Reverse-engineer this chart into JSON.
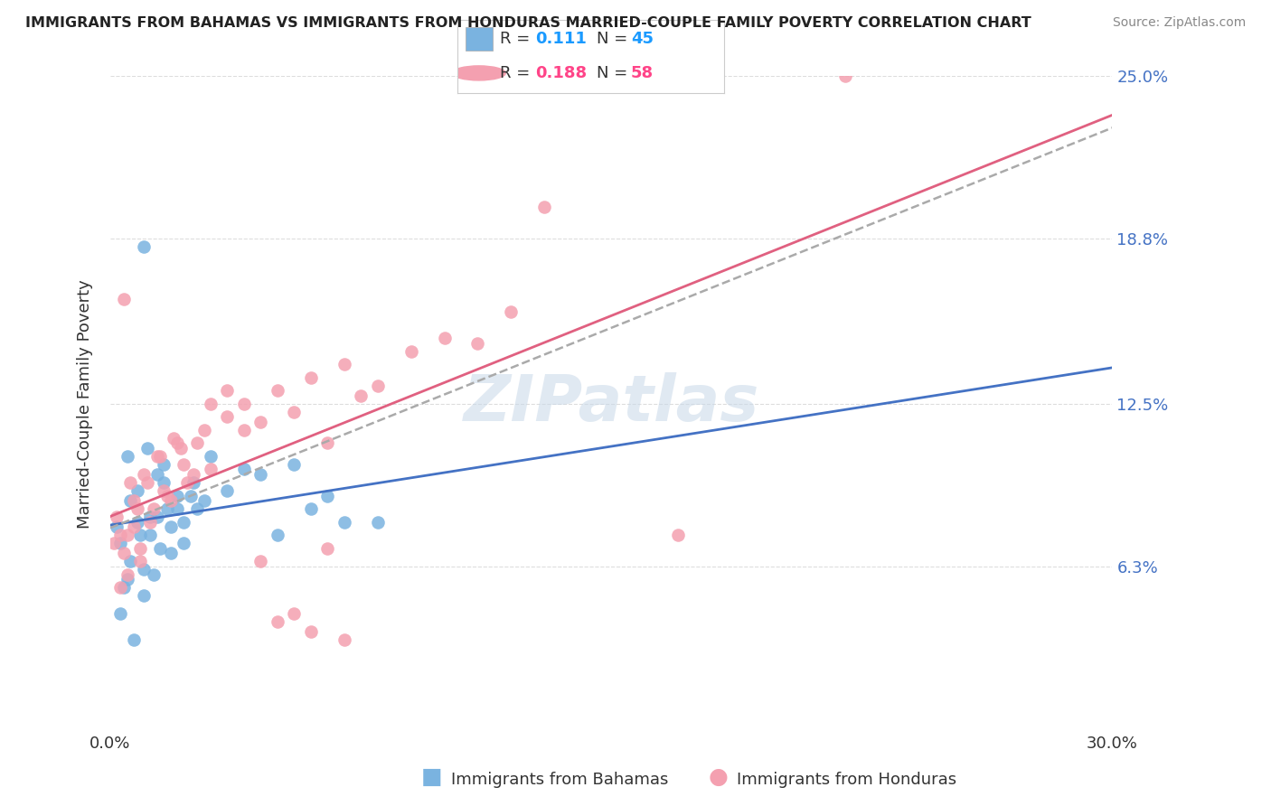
{
  "title": "IMMIGRANTS FROM BAHAMAS VS IMMIGRANTS FROM HONDURAS MARRIED-COUPLE FAMILY POVERTY CORRELATION CHART",
  "source": "Source: ZipAtlas.com",
  "ylabel": "Married-Couple Family Poverty",
  "x_min": 0.0,
  "x_max": 30.0,
  "y_min": 0.0,
  "y_max": 25.0,
  "bahamas_color": "#7ab3e0",
  "honduras_color": "#f4a0b0",
  "bahamas_R": "0.111",
  "bahamas_N": "45",
  "honduras_R": "0.188",
  "honduras_N": "58",
  "watermark": "ZIPatlas",
  "bahamas_line_color": "#4472C4",
  "honduras_line_color": "#e06080",
  "dash_color": "#aaaaaa",
  "bahamas_scatter": [
    [
      0.3,
      7.2
    ],
    [
      0.5,
      10.5
    ],
    [
      0.6,
      8.8
    ],
    [
      0.7,
      3.5
    ],
    [
      0.8,
      9.2
    ],
    [
      0.9,
      7.5
    ],
    [
      1.0,
      5.2
    ],
    [
      1.1,
      10.8
    ],
    [
      1.2,
      8.2
    ],
    [
      1.3,
      6.0
    ],
    [
      1.4,
      9.8
    ],
    [
      1.5,
      7.0
    ],
    [
      1.6,
      10.2
    ],
    [
      1.7,
      8.5
    ],
    [
      1.8,
      6.8
    ],
    [
      2.0,
      9.0
    ],
    [
      2.2,
      8.0
    ],
    [
      2.5,
      9.5
    ],
    [
      2.8,
      8.8
    ],
    [
      3.0,
      10.5
    ],
    [
      3.5,
      9.2
    ],
    [
      4.0,
      10.0
    ],
    [
      4.5,
      9.8
    ],
    [
      5.0,
      7.5
    ],
    [
      5.5,
      10.2
    ],
    [
      6.0,
      8.5
    ],
    [
      6.5,
      9.0
    ],
    [
      7.0,
      8.0
    ],
    [
      0.2,
      7.8
    ],
    [
      0.4,
      5.5
    ],
    [
      0.6,
      6.5
    ],
    [
      0.8,
      8.0
    ],
    [
      1.0,
      6.2
    ],
    [
      1.2,
      7.5
    ],
    [
      1.4,
      8.2
    ],
    [
      1.6,
      9.5
    ],
    [
      1.8,
      7.8
    ],
    [
      2.0,
      8.5
    ],
    [
      2.2,
      7.2
    ],
    [
      2.4,
      9.0
    ],
    [
      0.3,
      4.5
    ],
    [
      0.5,
      5.8
    ],
    [
      2.6,
      8.5
    ],
    [
      8.0,
      8.0
    ],
    [
      1.0,
      18.5
    ]
  ],
  "honduras_scatter": [
    [
      0.2,
      8.2
    ],
    [
      0.3,
      5.5
    ],
    [
      0.4,
      6.8
    ],
    [
      0.5,
      7.5
    ],
    [
      0.6,
      9.5
    ],
    [
      0.7,
      7.8
    ],
    [
      0.8,
      8.5
    ],
    [
      0.9,
      6.5
    ],
    [
      1.0,
      9.8
    ],
    [
      1.2,
      8.0
    ],
    [
      1.4,
      10.5
    ],
    [
      1.6,
      9.2
    ],
    [
      1.8,
      8.8
    ],
    [
      2.0,
      11.0
    ],
    [
      2.2,
      10.2
    ],
    [
      2.5,
      9.8
    ],
    [
      2.8,
      11.5
    ],
    [
      3.0,
      10.0
    ],
    [
      3.5,
      12.0
    ],
    [
      4.0,
      12.5
    ],
    [
      4.5,
      11.8
    ],
    [
      5.0,
      13.0
    ],
    [
      5.5,
      12.2
    ],
    [
      6.0,
      13.5
    ],
    [
      6.5,
      11.0
    ],
    [
      7.0,
      14.0
    ],
    [
      7.5,
      12.8
    ],
    [
      8.0,
      13.2
    ],
    [
      9.0,
      14.5
    ],
    [
      10.0,
      15.0
    ],
    [
      11.0,
      14.8
    ],
    [
      12.0,
      16.0
    ],
    [
      0.1,
      7.2
    ],
    [
      0.3,
      7.5
    ],
    [
      0.5,
      6.0
    ],
    [
      0.7,
      8.8
    ],
    [
      0.9,
      7.0
    ],
    [
      1.1,
      9.5
    ],
    [
      1.3,
      8.5
    ],
    [
      1.5,
      10.5
    ],
    [
      1.7,
      9.0
    ],
    [
      1.9,
      11.2
    ],
    [
      2.1,
      10.8
    ],
    [
      2.3,
      9.5
    ],
    [
      2.6,
      11.0
    ],
    [
      3.0,
      12.5
    ],
    [
      3.5,
      13.0
    ],
    [
      4.0,
      11.5
    ],
    [
      0.4,
      16.5
    ],
    [
      4.5,
      6.5
    ],
    [
      5.5,
      4.5
    ],
    [
      6.0,
      3.8
    ],
    [
      6.5,
      7.0
    ],
    [
      17.0,
      7.5
    ],
    [
      22.0,
      25.0
    ],
    [
      13.0,
      20.0
    ],
    [
      5.0,
      4.2
    ],
    [
      7.0,
      3.5
    ]
  ]
}
